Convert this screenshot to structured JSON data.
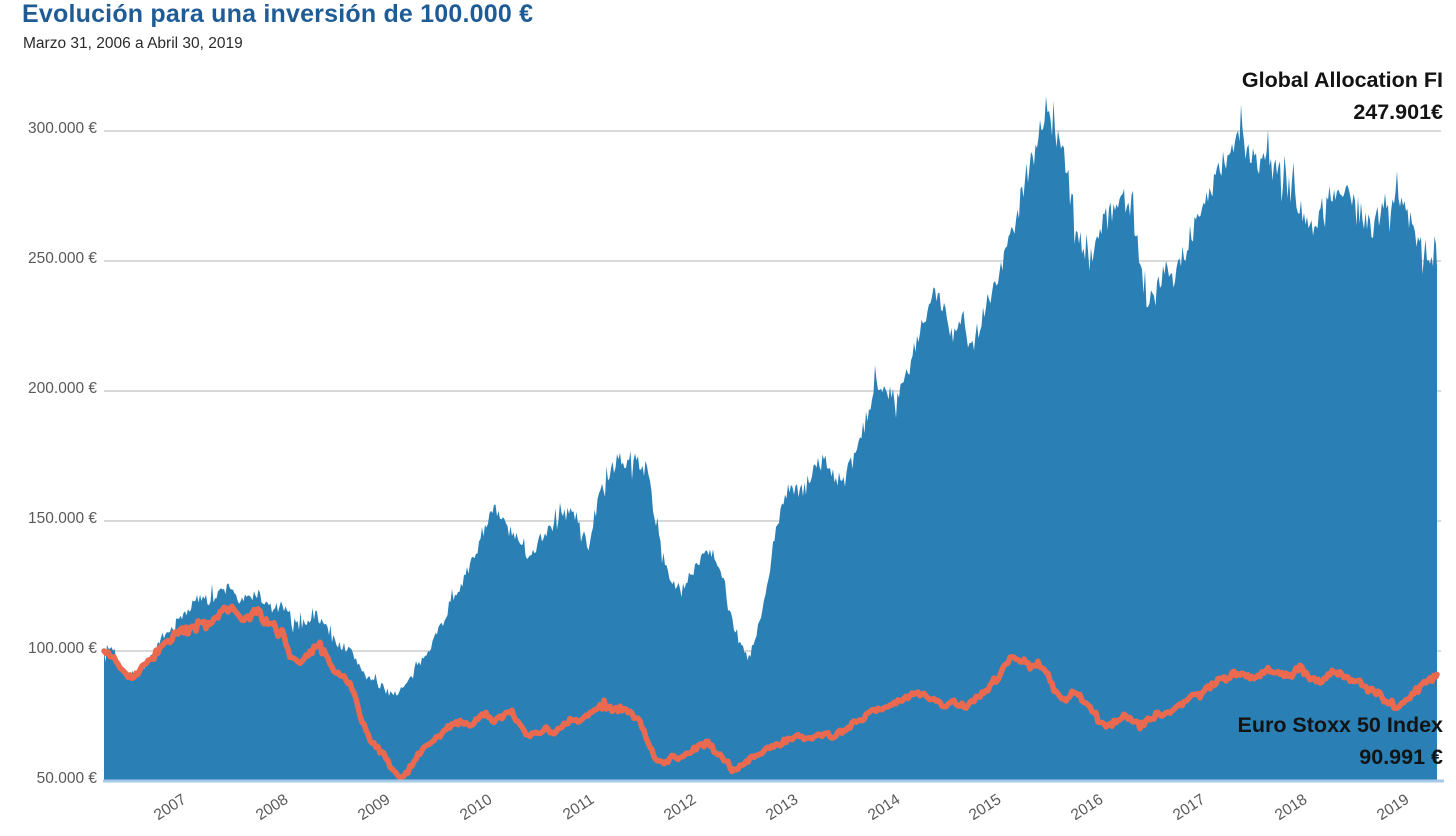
{
  "header": {
    "title": "Evolución para una inversión de 100.000 €",
    "subtitle": "Marzo 31, 2006 a Abril 30, 2019"
  },
  "annotations": {
    "fund": {
      "line1": "Global Allocation FI",
      "line2": "247.901€"
    },
    "index": {
      "line1": "Euro Stoxx 50 Index",
      "line2": "90.991 €"
    }
  },
  "style": {
    "title_color": "#1F5C96",
    "axis_label_color": "#595959",
    "grid_color": "#D9D9D9",
    "baseline_color": "#A7C9E5",
    "annotation_color": "#131313"
  },
  "chart_data": {
    "type": "area",
    "title": "Evolución para una inversión de 100.000 €",
    "subtitle": "Marzo 31, 2006 a Abril 30, 2019",
    "x_unit": "decimal_year",
    "x_start": 2006.25,
    "x_end": 2019.3333,
    "x_step": "monthly",
    "ylim": [
      50000,
      320000
    ],
    "grid": true,
    "y_ticks": [
      {
        "label": "300.000 €",
        "value": 300000
      },
      {
        "label": "250.000 €",
        "value": 250000
      },
      {
        "label": "200.000 €",
        "value": 200000
      },
      {
        "label": "150.000 €",
        "value": 150000
      },
      {
        "label": "100.000 €",
        "value": 100000
      },
      {
        "label": "50.000 €",
        "value": 50000
      }
    ],
    "x_ticks": [
      "2007",
      "2008",
      "2009",
      "2010",
      "2011",
      "2012",
      "2013",
      "2014",
      "2015",
      "2016",
      "2017",
      "2018",
      "2019"
    ],
    "series": [
      {
        "name": "Global Allocation FI",
        "type": "area",
        "color": "#2A80B5",
        "final_value_label": "247.901€",
        "final_value_eur": 247901,
        "values_eur": [
          100000,
          101500,
          94500,
          89000,
          91500,
          95500,
          100000,
          104500,
          108500,
          112500,
          116500,
          119500,
          122000,
          120000,
          123500,
          125000,
          118500,
          120500,
          122500,
          118000,
          116000,
          117500,
          111500,
          110000,
          112000,
          114000,
          110000,
          104500,
          102000,
          100000,
          95000,
          90000,
          87500,
          85500,
          83500,
          85000,
          88500,
          94000,
          100000,
          105500,
          112000,
          120000,
          126000,
          131000,
          140000,
          150000,
          154000,
          150000,
          145000,
          141000,
          137000,
          141000,
          146000,
          149000,
          152000,
          154000,
          149000,
          140000,
          155000,
          166000,
          170000,
          172000,
          174000,
          173000,
          169000,
          150000,
          135000,
          125500,
          123000,
          128500,
          135000,
          139500,
          137000,
          127000,
          112000,
          101500,
          97000,
          108000,
          122000,
          144000,
          158500,
          163000,
          160000,
          166500,
          171500,
          173500,
          167000,
          164500,
          171500,
          180000,
          191500,
          204500,
          202500,
          197500,
          201000,
          210000,
          221500,
          230000,
          238000,
          231500,
          222000,
          231000,
          215500,
          225000,
          234500,
          240500,
          251500,
          262000,
          274500,
          287500,
          297000,
          309000,
          299500,
          291000,
          272000,
          258000,
          250500,
          259500,
          266500,
          270000,
          275500,
          269500,
          251500,
          231500,
          242000,
          247500,
          244500,
          251500,
          259500,
          267500,
          275000,
          282000,
          289500,
          295500,
          297500,
          290000,
          286000,
          290000,
          287500,
          281500,
          276000,
          271500,
          262500,
          267500,
          273500,
          277500,
          279500,
          274000,
          268000,
          262500,
          266000,
          271500,
          275500,
          270000,
          264000,
          258000,
          252000,
          247901
        ]
      },
      {
        "name": "Euro Stoxx 50 Index",
        "type": "line",
        "color": "#EB6A4F",
        "final_value_label": "90.991 €",
        "final_value_eur": 90991,
        "values_eur": [
          100000,
          99000,
          93500,
          89500,
          91500,
          95000,
          98500,
          102000,
          104500,
          107000,
          109000,
          110500,
          110000,
          112500,
          115500,
          117000,
          111500,
          113000,
          115000,
          112000,
          110000,
          107000,
          97500,
          95500,
          98000,
          101500,
          99500,
          93500,
          90500,
          88000,
          77500,
          67500,
          63500,
          60000,
          54000,
          51000,
          55000,
          60000,
          63500,
          66000,
          69500,
          71500,
          73000,
          71000,
          73500,
          76000,
          73000,
          75000,
          76500,
          72000,
          67000,
          68500,
          70000,
          69000,
          71500,
          73500,
          72500,
          75000,
          78000,
          79000,
          77000,
          78000,
          76000,
          74000,
          65500,
          58000,
          56500,
          60000,
          58500,
          61000,
          63500,
          65000,
          62000,
          58000,
          54000,
          55500,
          58000,
          60500,
          62000,
          63500,
          65000,
          66500,
          67500,
          66000,
          67000,
          68500,
          67000,
          69500,
          71500,
          73500,
          75500,
          77500,
          78500,
          80000,
          81500,
          83000,
          84000,
          83000,
          81000,
          79000,
          81000,
          78000,
          80000,
          83000,
          85000,
          88000,
          93500,
          97500,
          96500,
          94000,
          95500,
          91500,
          84500,
          81000,
          83500,
          82500,
          79000,
          74500,
          70000,
          72500,
          75000,
          74000,
          71000,
          73500,
          75500,
          76000,
          77500,
          79500,
          82500,
          84000,
          86000,
          88000,
          89500,
          91000,
          92000,
          90000,
          91000,
          92500,
          92000,
          91000,
          91500,
          93500,
          89500,
          88000,
          90000,
          91500,
          90500,
          89000,
          88000,
          85000,
          84000,
          81000,
          78000,
          80500,
          83000,
          86000,
          88500,
          90991
        ]
      }
    ]
  }
}
